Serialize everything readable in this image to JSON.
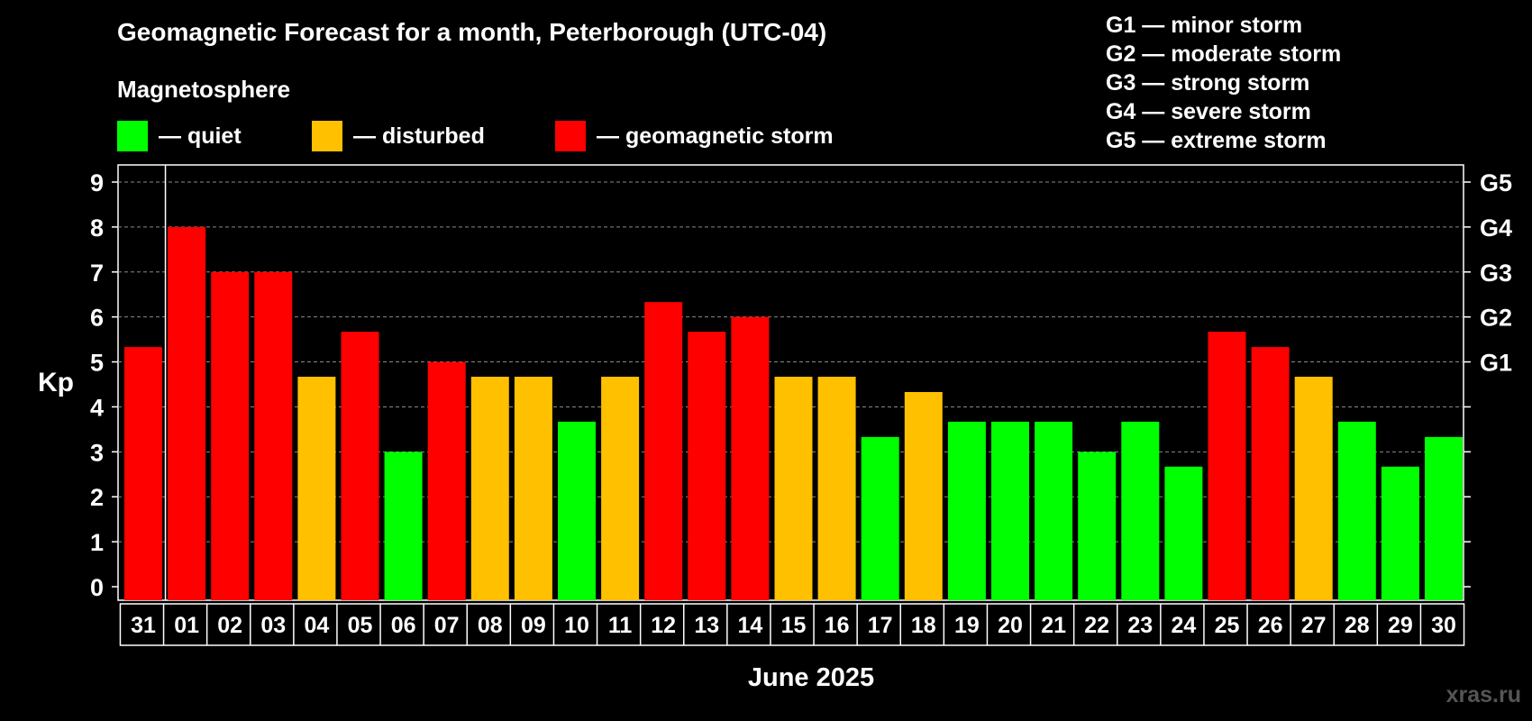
{
  "title": "Geomagnetic Forecast for a month, Peterborough (UTC-04)",
  "subtitle": "Magnetosphere",
  "legend": [
    {
      "label": "— quiet",
      "color": "#00ff00"
    },
    {
      "label": "— disturbed",
      "color": "#ffc000"
    },
    {
      "label": "— geomagnetic storm",
      "color": "#ff0000"
    }
  ],
  "g_legend": [
    "G1 — minor storm",
    "G2 — moderate storm",
    "G3 — strong storm",
    "G4 — severe storm",
    "G5 — extreme storm"
  ],
  "watermark": "xras.ru",
  "colors": {
    "quiet": "#00ff00",
    "disturbed": "#ffc000",
    "storm": "#ff0000",
    "grid": "#888888",
    "axis": "#ffffff"
  },
  "chart_data": {
    "type": "bar",
    "ylabel": "Kp",
    "xlabel": "June 2025",
    "ylim": [
      0,
      9
    ],
    "yticks": [
      "0",
      "1",
      "2",
      "3",
      "4",
      "5",
      "6",
      "7",
      "8",
      "9"
    ],
    "right_ticks": [
      {
        "value": 5,
        "label": "G1"
      },
      {
        "value": 6,
        "label": "G2"
      },
      {
        "value": 7,
        "label": "G3"
      },
      {
        "value": 8,
        "label": "G4"
      },
      {
        "value": 9,
        "label": "G5"
      }
    ],
    "categories": [
      "31",
      "01",
      "02",
      "03",
      "04",
      "05",
      "06",
      "07",
      "08",
      "09",
      "10",
      "11",
      "12",
      "13",
      "14",
      "15",
      "16",
      "17",
      "18",
      "19",
      "20",
      "21",
      "22",
      "23",
      "24",
      "25",
      "26",
      "27",
      "28",
      "29",
      "30"
    ],
    "values": [
      5.33,
      8,
      7,
      7,
      4.67,
      5.67,
      3,
      5,
      4.67,
      4.67,
      3.67,
      4.67,
      6.33,
      5.67,
      6,
      4.67,
      4.67,
      3.33,
      4.33,
      3.67,
      3.67,
      3.67,
      3,
      3.67,
      2.67,
      5.67,
      5.33,
      4.67,
      3.67,
      2.67,
      3.33
    ],
    "levels": [
      "storm",
      "storm",
      "storm",
      "storm",
      "disturbed",
      "storm",
      "quiet",
      "storm",
      "disturbed",
      "disturbed",
      "quiet",
      "disturbed",
      "storm",
      "storm",
      "storm",
      "disturbed",
      "disturbed",
      "quiet",
      "disturbed",
      "quiet",
      "quiet",
      "quiet",
      "quiet",
      "quiet",
      "quiet",
      "storm",
      "storm",
      "disturbed",
      "quiet",
      "quiet",
      "quiet"
    ]
  }
}
